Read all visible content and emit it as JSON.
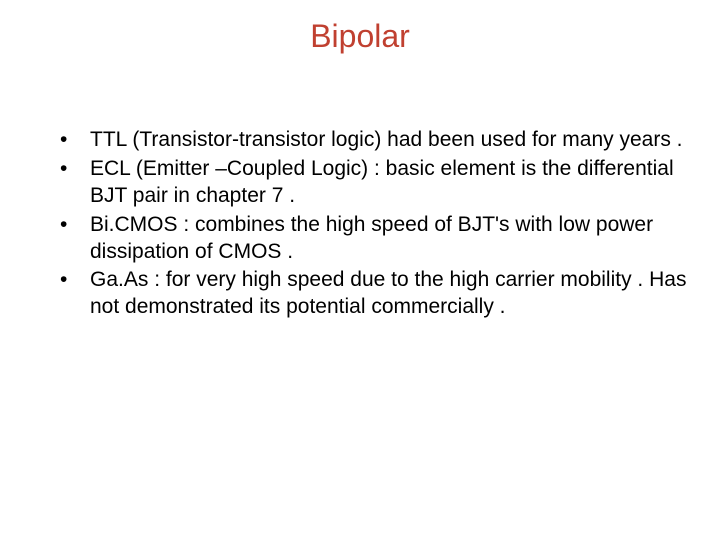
{
  "slide": {
    "title": "Bipolar",
    "title_color": "#c04030",
    "text_color": "#000000",
    "background_color": "#ffffff",
    "title_fontsize": 32,
    "body_fontsize": 21,
    "bullets": [
      "TTL (Transistor-transistor logic) had been used for many years .",
      "ECL (Emitter –Coupled Logic) : basic element is the differential BJT pair in chapter 7 .",
      "Bi.CMOS : combines the high speed of BJT's with  low power dissipation of CMOS .",
      "Ga.As : for  very high speed due to the high carrier mobility . Has not demonstrated its potential commercially ."
    ]
  }
}
